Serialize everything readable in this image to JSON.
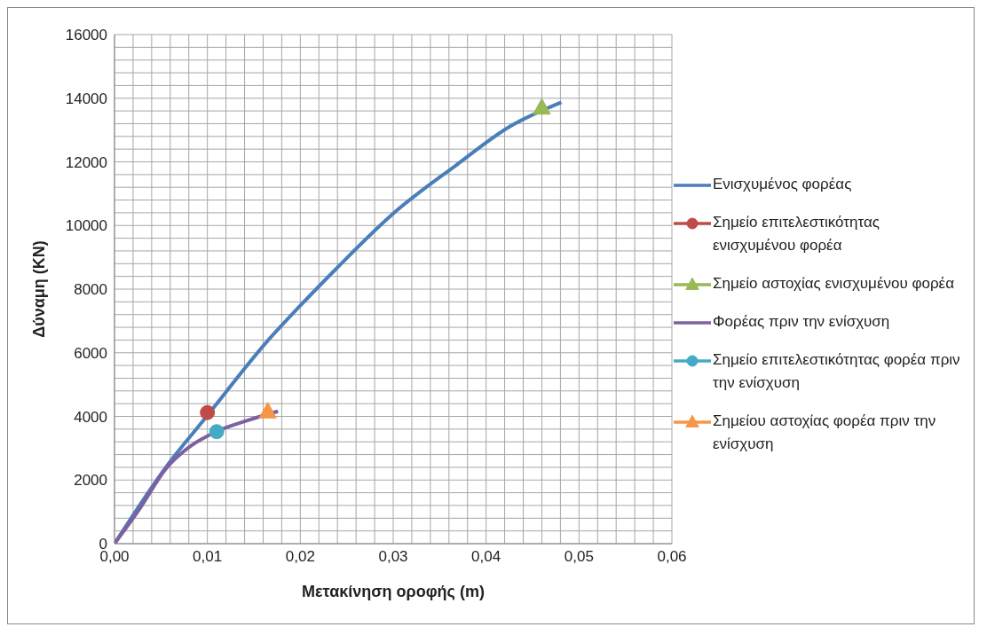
{
  "chart_data": {
    "type": "line",
    "xlabel": "Μετακίνηση οροφής (m)",
    "ylabel": "Δύναμη (KN)",
    "xlim": [
      0,
      0.06
    ],
    "ylim": [
      0,
      16000
    ],
    "xticks": [
      {
        "value": 0,
        "label": "0,00"
      },
      {
        "value": 0.002,
        "label": null
      },
      {
        "value": 0.004,
        "label": null
      },
      {
        "value": 0.006,
        "label": null
      },
      {
        "value": 0.008,
        "label": null
      },
      {
        "value": 0.01,
        "label": "0,01"
      },
      {
        "value": 0.012,
        "label": null
      },
      {
        "value": 0.014,
        "label": null
      },
      {
        "value": 0.016,
        "label": null
      },
      {
        "value": 0.018,
        "label": null
      },
      {
        "value": 0.02,
        "label": "0,02"
      },
      {
        "value": 0.022,
        "label": null
      },
      {
        "value": 0.024,
        "label": null
      },
      {
        "value": 0.026,
        "label": null
      },
      {
        "value": 0.028,
        "label": null
      },
      {
        "value": 0.03,
        "label": "0,03"
      },
      {
        "value": 0.032,
        "label": null
      },
      {
        "value": 0.034,
        "label": null
      },
      {
        "value": 0.036,
        "label": null
      },
      {
        "value": 0.038,
        "label": null
      },
      {
        "value": 0.04,
        "label": "0,04"
      },
      {
        "value": 0.042,
        "label": null
      },
      {
        "value": 0.044,
        "label": null
      },
      {
        "value": 0.046,
        "label": null
      },
      {
        "value": 0.048,
        "label": null
      },
      {
        "value": 0.05,
        "label": "0,05"
      },
      {
        "value": 0.052,
        "label": null
      },
      {
        "value": 0.054,
        "label": null
      },
      {
        "value": 0.056,
        "label": null
      },
      {
        "value": 0.058,
        "label": null
      },
      {
        "value": 0.06,
        "label": "0,06"
      }
    ],
    "yticks": [
      0,
      {
        "value": 400,
        "label": null
      },
      {
        "value": 800,
        "label": null
      },
      {
        "value": 1200,
        "label": null
      },
      {
        "value": 1600,
        "label": null
      },
      2000,
      {
        "value": 2400,
        "label": null
      },
      {
        "value": 2800,
        "label": null
      },
      {
        "value": 3200,
        "label": null
      },
      {
        "value": 3600,
        "label": null
      },
      4000,
      {
        "value": 4400,
        "label": null
      },
      {
        "value": 4800,
        "label": null
      },
      {
        "value": 5200,
        "label": null
      },
      {
        "value": 5600,
        "label": null
      },
      6000,
      {
        "value": 6400,
        "label": null
      },
      {
        "value": 6800,
        "label": null
      },
      {
        "value": 7200,
        "label": null
      },
      {
        "value": 7600,
        "label": null
      },
      8000,
      {
        "value": 8400,
        "label": null
      },
      {
        "value": 8800,
        "label": null
      },
      {
        "value": 9200,
        "label": null
      },
      {
        "value": 9600,
        "label": null
      },
      10000,
      {
        "value": 10400,
        "label": null
      },
      {
        "value": 10800,
        "label": null
      },
      {
        "value": 11200,
        "label": null
      },
      {
        "value": 11600,
        "label": null
      },
      12000,
      {
        "value": 12400,
        "label": null
      },
      {
        "value": 12800,
        "label": null
      },
      {
        "value": 13200,
        "label": null
      },
      {
        "value": 13600,
        "label": null
      },
      14000,
      {
        "value": 14400,
        "label": null
      },
      {
        "value": 14800,
        "label": null
      },
      {
        "value": 15200,
        "label": null
      },
      {
        "value": 15600,
        "label": null
      },
      16000
    ],
    "grid": true,
    "legend": "right",
    "series": [
      {
        "name": "Ενισχυμένος φορέας",
        "color": "#4a7ebb",
        "marker": "none",
        "x": [
          0,
          0.0056,
          0.01,
          0.0165,
          0.0199,
          0.0238,
          0.0299,
          0.0368,
          0.0425,
          0.0481
        ],
        "values": [
          0,
          2430,
          4030,
          6380,
          7450,
          8620,
          10350,
          11900,
          13100,
          13870
        ]
      },
      {
        "name": "Σημείο επιτελεστικότητας ενισχυμένου φορέα",
        "color": "#be4b48",
        "marker": "circle",
        "x": [
          0.01
        ],
        "values": [
          4120
        ]
      },
      {
        "name": "Σημείο αστοχίας ενισχυμένου φορέα",
        "color": "#98b954",
        "marker": "triangle",
        "x": [
          0.046
        ],
        "values": [
          13700
        ]
      },
      {
        "name": "Φορέας πριν την ενίσχυση",
        "color": "#7d60a0",
        "marker": "none",
        "x": [
          0,
          0.0026,
          0.0056,
          0.0082,
          0.0108,
          0.0143,
          0.0176
        ],
        "values": [
          0,
          1050,
          2380,
          3070,
          3500,
          3870,
          4160
        ]
      },
      {
        "name": "Σημείο επιτελεστικότητας φορέα πριν την ενίσχυση",
        "color": "#46aac5",
        "marker": "circle",
        "x": [
          0.011
        ],
        "values": [
          3520
        ]
      },
      {
        "name": "Σημείου αστοχίας φορέα πριν την ενίσχυση",
        "color": "#f79646",
        "marker": "triangle",
        "x": [
          0.0165
        ],
        "values": [
          4150
        ]
      }
    ]
  }
}
